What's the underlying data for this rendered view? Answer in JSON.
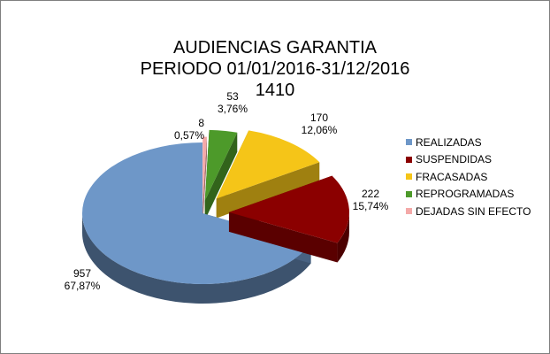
{
  "chart_data": {
    "type": "pie",
    "title": "AUDIENCIAS GARANTIA",
    "subtitle": "PERIODO 01/01/2016-31/12/2016",
    "total_label": "1410",
    "slices": [
      {
        "name": "REALIZADAS",
        "value": 957,
        "percent": "67,87%",
        "color": "#6e97c8"
      },
      {
        "name": "SUSPENDIDAS",
        "value": 222,
        "percent": "15,74%",
        "color": "#8b0000"
      },
      {
        "name": "FRACASADAS",
        "value": 170,
        "percent": "12,06%",
        "color": "#f5c518"
      },
      {
        "name": "REPROGRAMADAS",
        "value": 53,
        "percent": "3,76%",
        "color": "#4d9a2a"
      },
      {
        "name": "DEJADAS SIN EFECTO",
        "value": 8,
        "percent": "0,57%",
        "color": "#f4a9a8"
      }
    ],
    "legend_position": "right",
    "exploded": true,
    "three_d": true
  }
}
